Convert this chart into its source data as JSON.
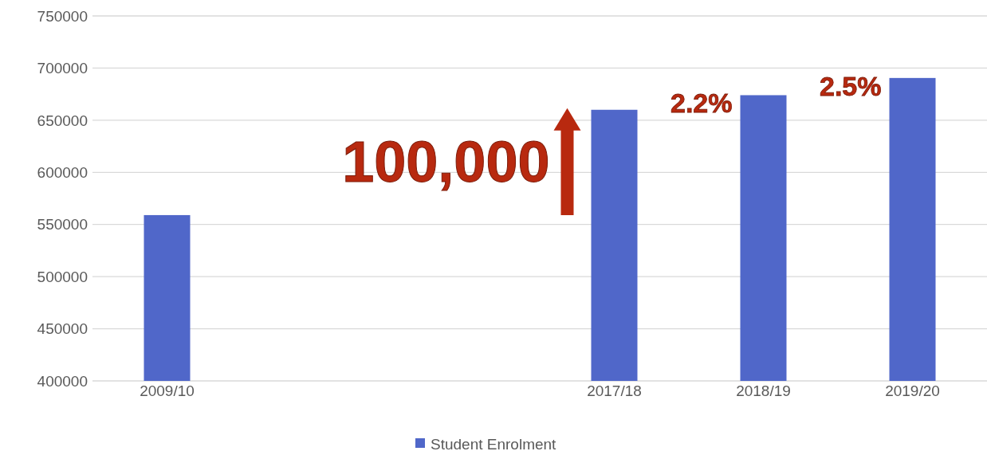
{
  "chart_data": {
    "type": "bar",
    "categories": [
      "2009/10",
      null,
      null,
      "2017/18",
      "2018/19",
      "2019/20"
    ],
    "series": [
      {
        "name": "Student Enrolment",
        "color": "#5067c9",
        "values": [
          559000,
          null,
          null,
          660000,
          674000,
          690500
        ]
      }
    ],
    "ylim": [
      400000,
      750000
    ],
    "yticks": [
      400000,
      450000,
      500000,
      550000,
      600000,
      650000,
      700000,
      750000
    ],
    "grid": "y",
    "legend": "bottom",
    "annotations": [
      {
        "text": "100,000",
        "x": "2017/18",
        "y": 660000
      },
      {
        "text": "2.2%",
        "x": "2018/19",
        "y": 674000
      },
      {
        "text": "2.5%",
        "x": "2019/20",
        "y": 690500
      }
    ]
  }
}
